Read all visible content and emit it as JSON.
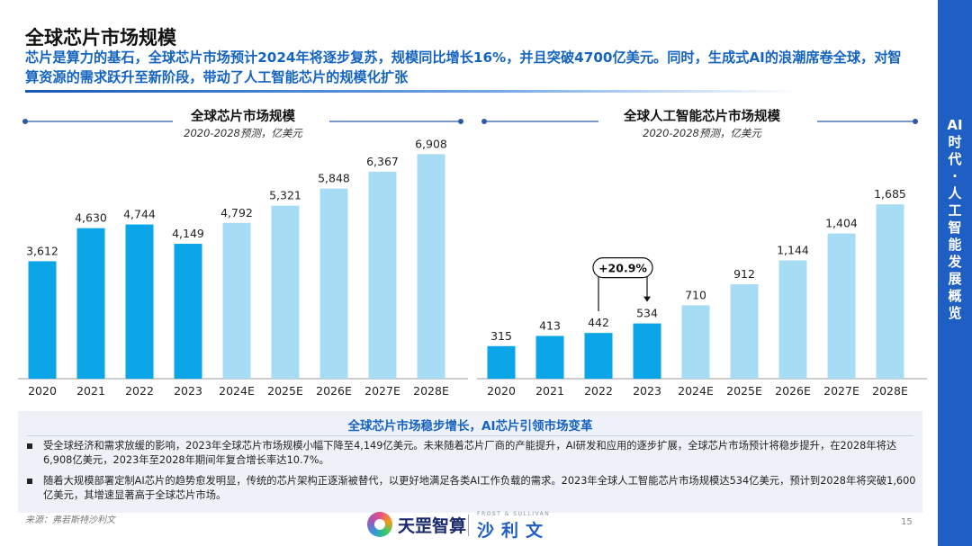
{
  "header": {
    "title": "全球芯片市场规模",
    "subtitle": "芯片是算力的基石，全球芯片市场预计2024年将逐步复苏，规模同比增长16%，并且突破4700亿美元。同时，生成式AI的浪潮席卷全球，对智算资源的需求跃升至新阶段，带动了人工智能芯片的规模化扩张"
  },
  "sidebar": {
    "label": "AI时代·人工智能发展概览"
  },
  "chart_data": [
    {
      "type": "bar",
      "title": "全球芯片市场规模",
      "subtitle": "2020-2028预测，亿美元",
      "categories": [
        "2020",
        "2021",
        "2022",
        "2023",
        "2024E",
        "2025E",
        "2026E",
        "2027E",
        "2028E"
      ],
      "values": [
        3612,
        4630,
        4744,
        4149,
        4792,
        5321,
        5848,
        6367,
        6908
      ],
      "value_labels": [
        "3,612",
        "4,630",
        "4,744",
        "4,149",
        "4,792",
        "5,321",
        "5,848",
        "6,367",
        "6,908"
      ],
      "ylim": [
        0,
        7000
      ],
      "colors": {
        "actual": "#0aa5e6",
        "forecast": "#a6dcf4"
      },
      "forecast_start_index": 4
    },
    {
      "type": "bar",
      "title": "全球人工智能芯片市场规模",
      "subtitle": "2020-2028预测，亿美元",
      "categories": [
        "2020",
        "2021",
        "2022",
        "2023",
        "2024E",
        "2025E",
        "2026E",
        "2027E",
        "2028E"
      ],
      "values": [
        315,
        413,
        442,
        534,
        710,
        912,
        1144,
        1404,
        1685
      ],
      "value_labels": [
        "315",
        "413",
        "442",
        "534",
        "710",
        "912",
        "1,144",
        "1,404",
        "1,685"
      ],
      "ylim": [
        0,
        2200
      ],
      "colors": {
        "actual": "#0aa5e6",
        "forecast": "#a6dcf4"
      },
      "forecast_start_index": 4,
      "annotation": {
        "text": "+20.9%",
        "from_index": 2,
        "to_index": 3
      }
    }
  ],
  "summary": {
    "heading": "全球芯片市场稳步增长，AI芯片引领市场变革",
    "bullets": [
      "受全球经济和需求放缓的影响，2023年全球芯片市场规模小幅下降至4,149亿美元。未来随着芯片厂商的产能提升，AI研发和应用的逐步扩展，全球芯片市场预计将稳步提升，在2028年将达6,908亿美元，2023年至2028年期间年复合增长率达10.7%。",
      "随着大规模部署定制AI芯片的趋势愈发明显，传统的芯片架构正逐渐被替代，以更好地满足各类AI工作负载的需求。2023年全球人工智能芯片市场规模达534亿美元，预计到2028年将突破1,600亿美元，其增速显著高于全球芯片市场。"
    ]
  },
  "footer": {
    "source": "来源：弗若斯特沙利文",
    "logo1_name": "天罡智算",
    "logo2_small": "FROST & SULLIVAN",
    "logo2_big": "沙利文",
    "page_number": "15"
  }
}
